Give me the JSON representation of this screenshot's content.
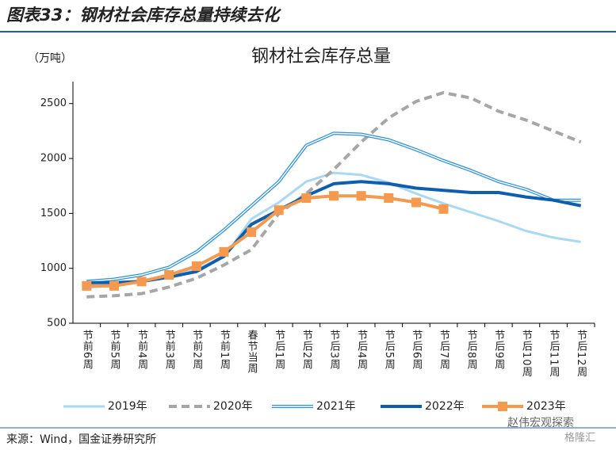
{
  "header": {
    "title": "图表33：钢材社会库存总量持续去化"
  },
  "chart_data": {
    "type": "line",
    "title": "钢材社会库存总量",
    "y_label": "（万吨）",
    "categories": [
      "节前6周",
      "节前5周",
      "节前4周",
      "节前3周",
      "节前2周",
      "节前1周",
      "春节当周",
      "节后1周",
      "节后2周",
      "节后3周",
      "节后4周",
      "节后5周",
      "节后6周",
      "节后7周",
      "节后8周",
      "节后9周",
      "节后10周",
      "节后11周",
      "节后12周"
    ],
    "series": [
      {
        "name": "2019年",
        "color": "#a9d9f2",
        "style": "solid",
        "values": [
          820,
          850,
          890,
          930,
          990,
          1100,
          1450,
          1600,
          1790,
          1870,
          1850,
          1780,
          1680,
          1590,
          1510,
          1430,
          1340,
          1280,
          1240
        ]
      },
      {
        "name": "2020年",
        "color": "#a6a6a6",
        "style": "dashed",
        "values": [
          740,
          750,
          770,
          830,
          910,
          1030,
          1170,
          1500,
          1680,
          1900,
          2150,
          2370,
          2520,
          2600,
          2550,
          2430,
          2350,
          2250,
          2150
        ]
      },
      {
        "name": "2021年",
        "color": "#2e90d6",
        "style": "double",
        "values": [
          880,
          900,
          940,
          1010,
          1150,
          1350,
          1570,
          1790,
          2120,
          2230,
          2220,
          2170,
          2080,
          1980,
          1890,
          1790,
          1720,
          1620,
          1620
        ]
      },
      {
        "name": "2022年",
        "color": "#0f5ead",
        "style": "thick",
        "values": [
          870,
          870,
          880,
          920,
          970,
          1110,
          1400,
          1530,
          1660,
          1770,
          1790,
          1770,
          1730,
          1710,
          1690,
          1690,
          1650,
          1620,
          1570
        ]
      },
      {
        "name": "2023年",
        "color": "#f5994f",
        "style": "marker",
        "values": [
          840,
          840,
          880,
          940,
          1020,
          1150,
          1330,
          1530,
          1640,
          1660,
          1660,
          1640,
          1600,
          1540,
          null,
          null,
          null,
          null,
          null
        ]
      }
    ],
    "ylim": [
      500,
      2700
    ],
    "yticks": [
      500,
      1000,
      1500,
      2000,
      2500
    ],
    "legend": "bottom"
  },
  "source": "来源：Wind，国金证券研究所",
  "watermark": [
    "赵伟宏观探索",
    "格隆汇"
  ]
}
